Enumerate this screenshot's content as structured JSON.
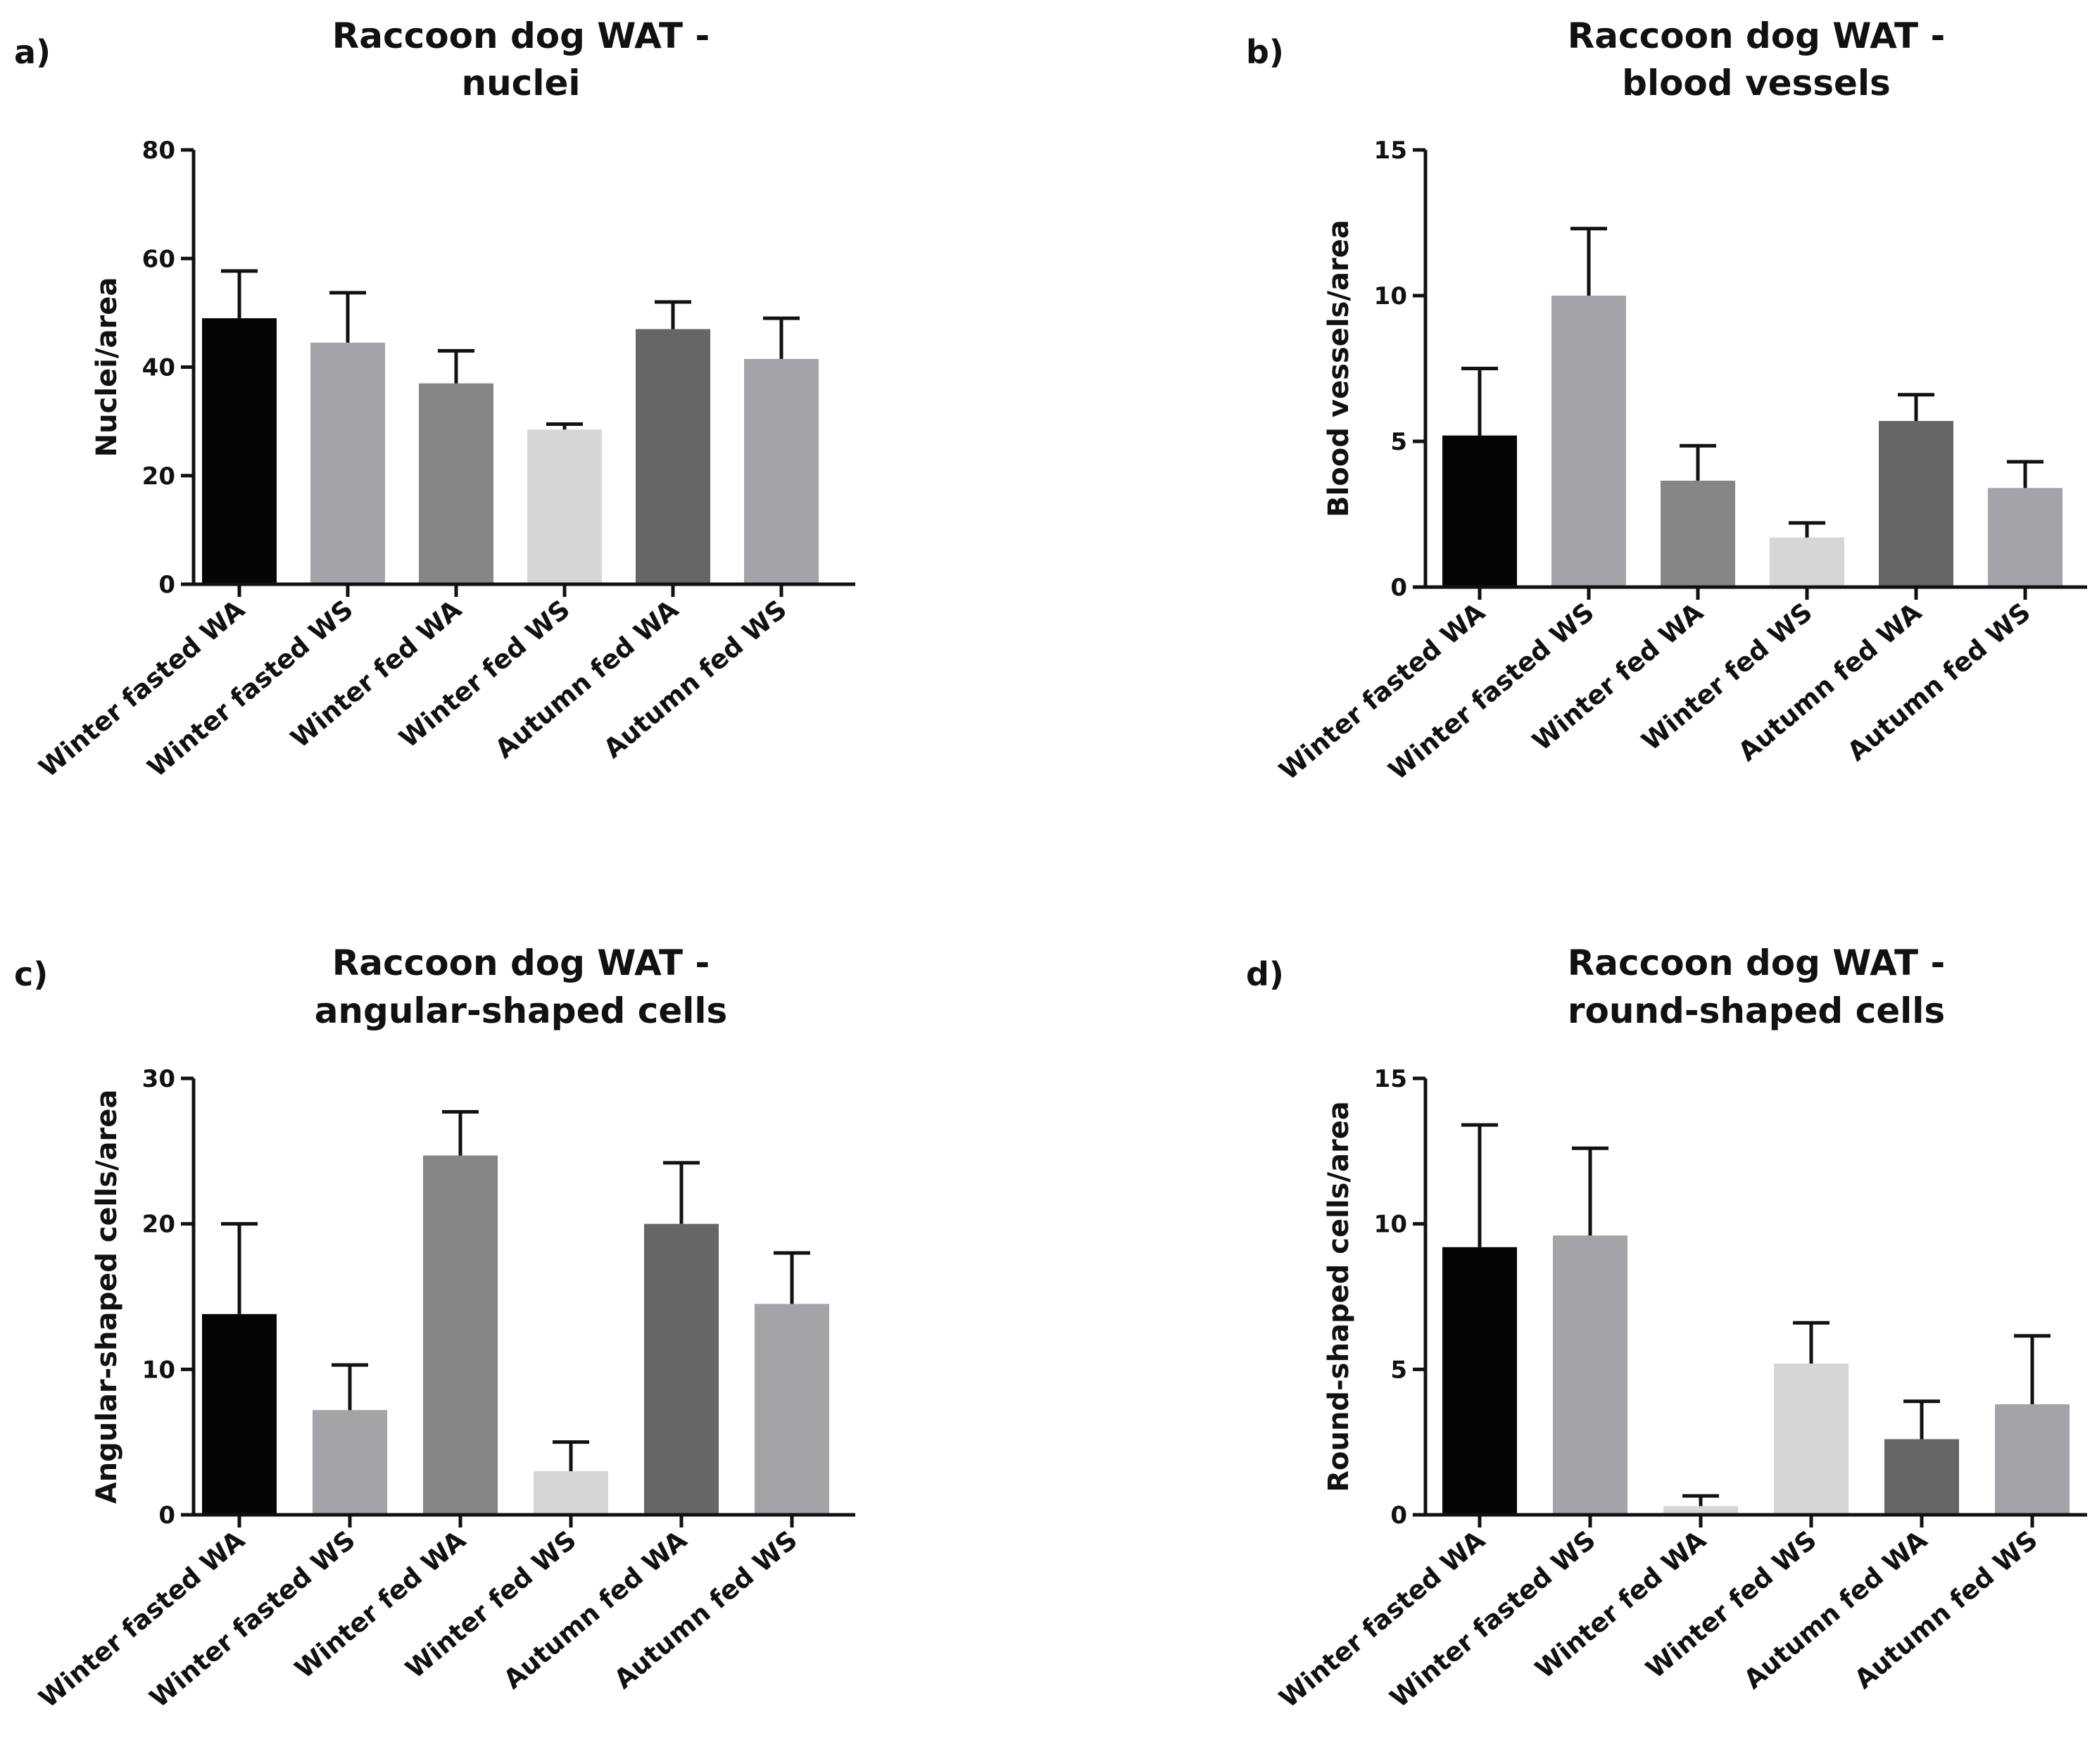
{
  "chart_data": [
    {
      "id": "a",
      "type": "bar",
      "panel_label": "a)",
      "title": [
        "Raccoon dog WAT -",
        "nuclei"
      ],
      "xlabel": "",
      "ylabel": "Nuclei/area",
      "ylim": [
        0,
        80
      ],
      "yticks": [
        "0",
        "20",
        "40",
        "60",
        "80"
      ],
      "categories": [
        "Winter fasted WA",
        "Winter fasted WS",
        "Winter fed WA",
        "Winter fed WS",
        "Autumn fed WA",
        "Autumn fed WS"
      ],
      "values": [
        49,
        44.5,
        37,
        28.5,
        47,
        41.5
      ],
      "errors": [
        8.7,
        9.2,
        6,
        1,
        5,
        7.5
      ],
      "colors": [
        "#050505",
        "#a3a3a8",
        "#868686",
        "#d6d6d6",
        "#666666",
        "#a3a3a8"
      ]
    },
    {
      "id": "b",
      "type": "bar",
      "panel_label": "b)",
      "title": [
        "Raccoon dog WAT -",
        "blood vessels"
      ],
      "xlabel": "",
      "ylabel": "Blood vessels/area",
      "ylim": [
        0,
        15
      ],
      "yticks": [
        "0",
        "5",
        "10",
        "15"
      ],
      "categories": [
        "Winter fasted WA",
        "Winter fasted WS",
        "Winter fed WA",
        "Winter fed WS",
        "Autumn fed WA",
        "Autumn fed WS"
      ],
      "values": [
        5.2,
        10,
        3.65,
        1.7,
        5.7,
        3.4
      ],
      "errors": [
        2.3,
        2.3,
        1.2,
        0.5,
        0.9,
        0.9
      ],
      "colors": [
        "#050505",
        "#a3a3a8",
        "#868686",
        "#d6d6d6",
        "#666666",
        "#a3a3a8"
      ]
    },
    {
      "id": "c",
      "type": "bar",
      "panel_label": "c)",
      "title": [
        "Raccoon dog WAT -",
        "angular-shaped cells"
      ],
      "xlabel": "",
      "ylabel": "Angular-shaped cells/area",
      "ylim": [
        0,
        30
      ],
      "yticks": [
        "0",
        "10",
        "20",
        "30"
      ],
      "categories": [
        "Winter fasted WA",
        "Winter fasted WS",
        "Winter fed WA",
        "Winter fed WS",
        "Autumn fed WA",
        "Autumn fed WS"
      ],
      "values": [
        13.8,
        7.2,
        24.7,
        3,
        20,
        14.5
      ],
      "errors": [
        6.2,
        3.1,
        3,
        2,
        4.2,
        3.5
      ],
      "colors": [
        "#050505",
        "#a3a3a8",
        "#868686",
        "#d6d6d6",
        "#666666",
        "#a3a3a8"
      ]
    },
    {
      "id": "d",
      "type": "bar",
      "panel_label": "d)",
      "title": [
        "Raccoon dog WAT -",
        "round-shaped cells"
      ],
      "xlabel": "",
      "ylabel": "Round-shaped cells/area",
      "ylim": [
        0,
        15
      ],
      "yticks": [
        "0",
        "5",
        "10",
        "15"
      ],
      "categories": [
        "Winter fasted WA",
        "Winter fasted WS",
        "Winter fed WA",
        "Winter fed WS",
        "Autumn fed WA",
        "Autumn fed WS"
      ],
      "values": [
        9.2,
        9.6,
        0.3,
        5.2,
        2.6,
        3.8
      ],
      "errors": [
        4.2,
        3,
        0.35,
        1.4,
        1.3,
        2.35
      ],
      "colors": [
        "#050505",
        "#a3a3a8",
        "#d6d6d6",
        "#d6d6d6",
        "#666666",
        "#a3a3a8"
      ]
    }
  ]
}
